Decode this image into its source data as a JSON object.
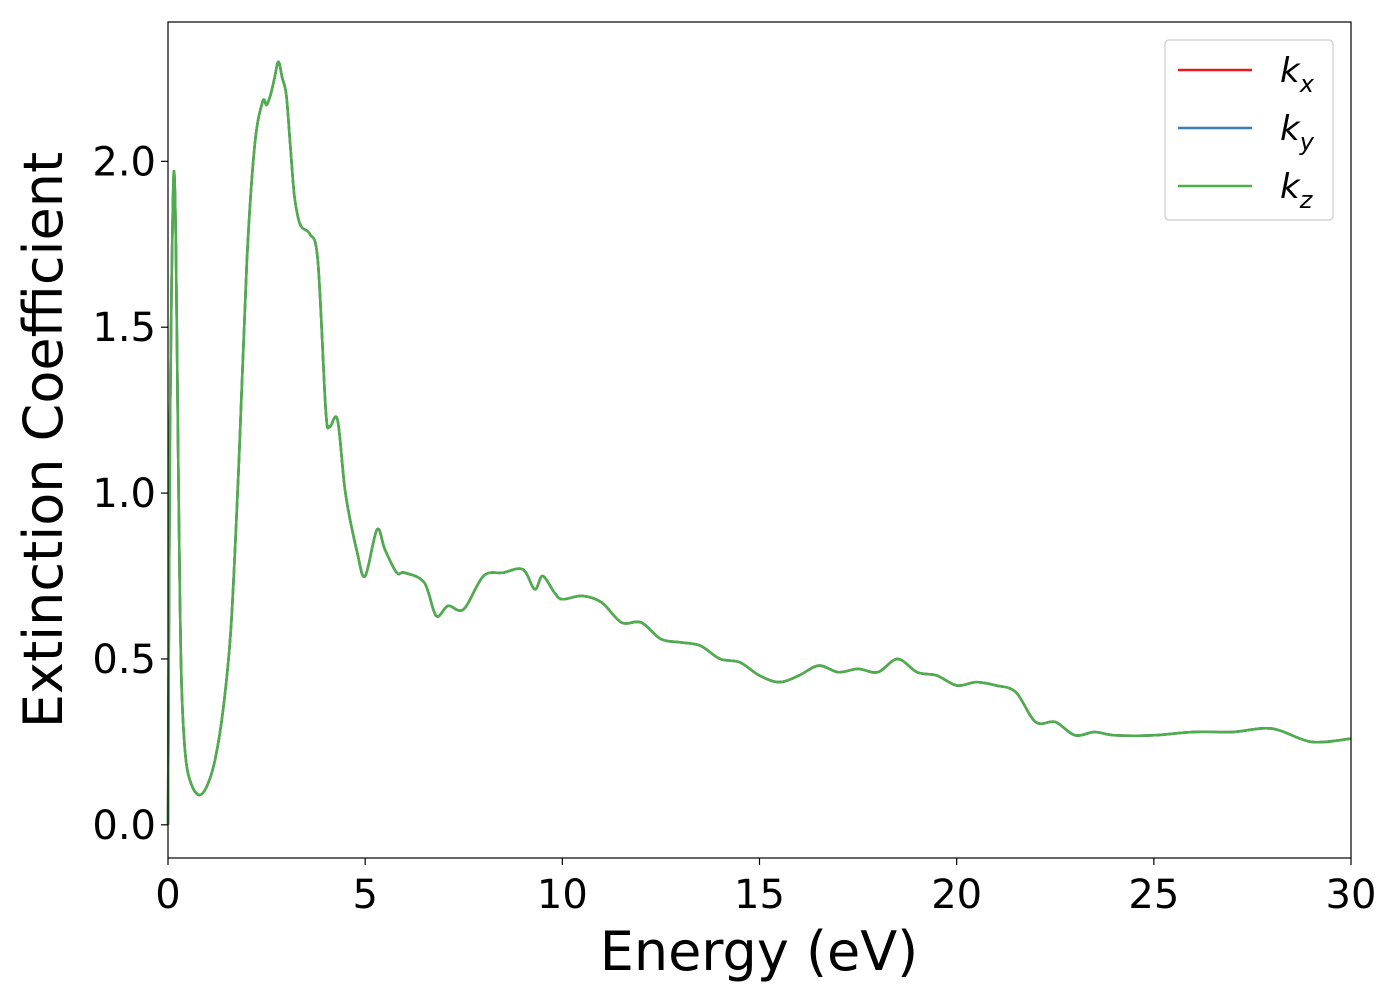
{
  "chart_data": {
    "type": "line",
    "xlabel": "Energy (eV)",
    "ylabel": "Extinction Coefficient",
    "xlim": [
      0,
      30
    ],
    "ylim": [
      -0.1,
      2.42
    ],
    "xticks": [
      0,
      5,
      10,
      15,
      20,
      25,
      30
    ],
    "yticks": [
      0.0,
      0.5,
      1.0,
      1.5,
      2.0
    ],
    "xtick_labels": [
      "0",
      "5",
      "10",
      "15",
      "20",
      "25",
      "30"
    ],
    "ytick_labels": [
      "0.0",
      "0.5",
      "1.0",
      "1.5",
      "2.0"
    ],
    "grid": false,
    "legend_position": "top-right",
    "series": [
      {
        "name": "k_x",
        "base": "k",
        "sub": "x",
        "color": "#e41a1c",
        "x": [
          0,
          0.05,
          0.1,
          0.15,
          0.2,
          0.25,
          0.3,
          0.35,
          0.45,
          0.6,
          0.8,
          1.0,
          1.2,
          1.4,
          1.6,
          1.8,
          2.0,
          2.2,
          2.4,
          2.5,
          2.6,
          2.7,
          2.8,
          2.9,
          3.0,
          3.1,
          3.2,
          3.3,
          3.4,
          3.6,
          3.8,
          4.0,
          4.1,
          4.3,
          4.5,
          4.8,
          5.0,
          5.3,
          5.5,
          5.8,
          6.0,
          6.5,
          6.8,
          7.1,
          7.5,
          8.0,
          8.5,
          9.0,
          9.3,
          9.5,
          9.8,
          10.0,
          10.5,
          11.0,
          11.5,
          12.0,
          12.5,
          13.0,
          13.5,
          14.0,
          14.5,
          15.0,
          15.5,
          16.0,
          16.5,
          17.0,
          17.5,
          18.0,
          18.5,
          19.0,
          19.5,
          20.0,
          20.5,
          21.0,
          21.5,
          22.0,
          22.5,
          23.0,
          23.5,
          24.0,
          25.0,
          26.0,
          27.0,
          28.0,
          29.0,
          30.0
        ],
        "y": [
          0.0,
          1.2,
          1.7,
          1.97,
          1.75,
          1.2,
          0.7,
          0.4,
          0.2,
          0.12,
          0.09,
          0.12,
          0.2,
          0.35,
          0.6,
          1.1,
          1.7,
          2.05,
          2.18,
          2.17,
          2.2,
          2.25,
          2.3,
          2.25,
          2.2,
          2.05,
          1.9,
          1.83,
          1.8,
          1.78,
          1.7,
          1.25,
          1.2,
          1.22,
          1.0,
          0.82,
          0.75,
          0.89,
          0.83,
          0.76,
          0.76,
          0.73,
          0.63,
          0.66,
          0.65,
          0.75,
          0.76,
          0.77,
          0.71,
          0.75,
          0.7,
          0.68,
          0.69,
          0.67,
          0.61,
          0.61,
          0.56,
          0.55,
          0.54,
          0.5,
          0.49,
          0.45,
          0.43,
          0.45,
          0.48,
          0.46,
          0.47,
          0.46,
          0.5,
          0.46,
          0.45,
          0.42,
          0.43,
          0.42,
          0.4,
          0.31,
          0.31,
          0.27,
          0.28,
          0.27,
          0.27,
          0.28,
          0.28,
          0.29,
          0.25,
          0.26
        ]
      },
      {
        "name": "k_y",
        "base": "k",
        "sub": "y",
        "color": "#377eb8",
        "x": [
          0,
          0.05,
          0.1,
          0.15,
          0.2,
          0.25,
          0.3,
          0.35,
          0.45,
          0.6,
          0.8,
          1.0,
          1.2,
          1.4,
          1.6,
          1.8,
          2.0,
          2.2,
          2.4,
          2.5,
          2.6,
          2.7,
          2.8,
          2.9,
          3.0,
          3.1,
          3.2,
          3.3,
          3.4,
          3.6,
          3.8,
          4.0,
          4.1,
          4.3,
          4.5,
          4.8,
          5.0,
          5.3,
          5.5,
          5.8,
          6.0,
          6.5,
          6.8,
          7.1,
          7.5,
          8.0,
          8.5,
          9.0,
          9.3,
          9.5,
          9.8,
          10.0,
          10.5,
          11.0,
          11.5,
          12.0,
          12.5,
          13.0,
          13.5,
          14.0,
          14.5,
          15.0,
          15.5,
          16.0,
          16.5,
          17.0,
          17.5,
          18.0,
          18.5,
          19.0,
          19.5,
          20.0,
          20.5,
          21.0,
          21.5,
          22.0,
          22.5,
          23.0,
          23.5,
          24.0,
          25.0,
          26.0,
          27.0,
          28.0,
          29.0,
          30.0
        ],
        "y": [
          0.0,
          1.2,
          1.7,
          1.97,
          1.75,
          1.2,
          0.7,
          0.4,
          0.2,
          0.12,
          0.09,
          0.12,
          0.2,
          0.35,
          0.6,
          1.1,
          1.7,
          2.05,
          2.18,
          2.17,
          2.2,
          2.25,
          2.3,
          2.25,
          2.2,
          2.05,
          1.9,
          1.83,
          1.8,
          1.78,
          1.7,
          1.25,
          1.2,
          1.22,
          1.0,
          0.82,
          0.75,
          0.89,
          0.83,
          0.76,
          0.76,
          0.73,
          0.63,
          0.66,
          0.65,
          0.75,
          0.76,
          0.77,
          0.71,
          0.75,
          0.7,
          0.68,
          0.69,
          0.67,
          0.61,
          0.61,
          0.56,
          0.55,
          0.54,
          0.5,
          0.49,
          0.45,
          0.43,
          0.45,
          0.48,
          0.46,
          0.47,
          0.46,
          0.5,
          0.46,
          0.45,
          0.42,
          0.43,
          0.42,
          0.4,
          0.31,
          0.31,
          0.27,
          0.28,
          0.27,
          0.27,
          0.28,
          0.28,
          0.29,
          0.25,
          0.26
        ]
      },
      {
        "name": "k_z",
        "base": "k",
        "sub": "z",
        "color": "#4daf4a",
        "x": [
          0,
          0.05,
          0.1,
          0.15,
          0.2,
          0.25,
          0.3,
          0.35,
          0.45,
          0.6,
          0.8,
          1.0,
          1.2,
          1.4,
          1.6,
          1.8,
          2.0,
          2.2,
          2.4,
          2.5,
          2.6,
          2.7,
          2.8,
          2.9,
          3.0,
          3.1,
          3.2,
          3.3,
          3.4,
          3.6,
          3.8,
          4.0,
          4.1,
          4.3,
          4.5,
          4.8,
          5.0,
          5.3,
          5.5,
          5.8,
          6.0,
          6.5,
          6.8,
          7.1,
          7.5,
          8.0,
          8.5,
          9.0,
          9.3,
          9.5,
          9.8,
          10.0,
          10.5,
          11.0,
          11.5,
          12.0,
          12.5,
          13.0,
          13.5,
          14.0,
          14.5,
          15.0,
          15.5,
          16.0,
          16.5,
          17.0,
          17.5,
          18.0,
          18.5,
          19.0,
          19.5,
          20.0,
          20.5,
          21.0,
          21.5,
          22.0,
          22.5,
          23.0,
          23.5,
          24.0,
          25.0,
          26.0,
          27.0,
          28.0,
          29.0,
          30.0
        ],
        "y": [
          0.0,
          1.2,
          1.7,
          1.97,
          1.75,
          1.2,
          0.7,
          0.4,
          0.2,
          0.12,
          0.09,
          0.12,
          0.2,
          0.35,
          0.6,
          1.1,
          1.7,
          2.05,
          2.18,
          2.17,
          2.2,
          2.25,
          2.3,
          2.25,
          2.2,
          2.05,
          1.9,
          1.83,
          1.8,
          1.78,
          1.7,
          1.25,
          1.2,
          1.22,
          1.0,
          0.82,
          0.75,
          0.89,
          0.83,
          0.76,
          0.76,
          0.73,
          0.63,
          0.66,
          0.65,
          0.75,
          0.76,
          0.77,
          0.71,
          0.75,
          0.7,
          0.68,
          0.69,
          0.67,
          0.61,
          0.61,
          0.56,
          0.55,
          0.54,
          0.5,
          0.49,
          0.45,
          0.43,
          0.45,
          0.48,
          0.46,
          0.47,
          0.46,
          0.5,
          0.46,
          0.45,
          0.42,
          0.43,
          0.42,
          0.4,
          0.31,
          0.31,
          0.27,
          0.28,
          0.27,
          0.27,
          0.28,
          0.28,
          0.29,
          0.25,
          0.26
        ]
      }
    ]
  }
}
